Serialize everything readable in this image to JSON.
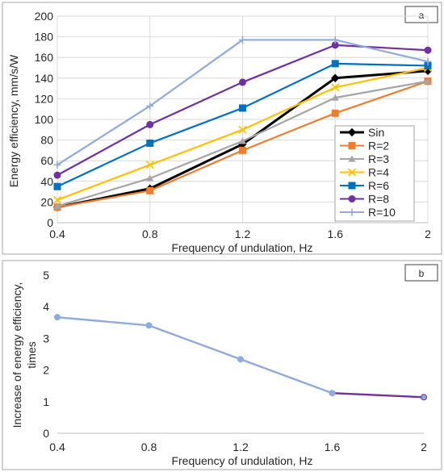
{
  "chart_data": [
    {
      "panel_label": "a",
      "type": "line",
      "xlabel": "Frequency of undulation, Hz",
      "ylabel": "Energy efficiency, mm/s/W",
      "x": [
        0.4,
        0.8,
        1.2,
        1.6,
        2
      ],
      "x_tick_labels": [
        "0.4",
        "0.8",
        "1.2",
        "1.6",
        "2"
      ],
      "xlim": [
        0.4,
        2
      ],
      "ylim": [
        0,
        200
      ],
      "y_ticks": [
        0,
        20,
        40,
        60,
        80,
        100,
        120,
        140,
        160,
        180,
        200
      ],
      "grid": true,
      "legend_position": "lower-right",
      "series": [
        {
          "name": "Sin",
          "values": [
            15,
            33,
            76,
            140,
            147
          ],
          "color": "#000000",
          "marker": "diamond"
        },
        {
          "name": "R=2",
          "values": [
            15,
            31,
            70,
            106,
            137
          ],
          "color": "#ed7d31",
          "marker": "square"
        },
        {
          "name": "R=3",
          "values": [
            16,
            43,
            79,
            121,
            137
          ],
          "color": "#a5a5a5",
          "marker": "triangle"
        },
        {
          "name": "R=4",
          "values": [
            22,
            56,
            90,
            131,
            150
          ],
          "color": "#ffc000",
          "marker": "x"
        },
        {
          "name": "R=6",
          "values": [
            35,
            77,
            111,
            154,
            152
          ],
          "color": "#0070c0",
          "marker": "square"
        },
        {
          "name": "R=8",
          "values": [
            46,
            95,
            136,
            172,
            167
          ],
          "color": "#7030a0",
          "marker": "circle"
        },
        {
          "name": "R=10",
          "values": [
            56,
            113,
            177,
            177,
            156
          ],
          "color": "#8faadc",
          "marker": "plus"
        }
      ]
    },
    {
      "panel_label": "b",
      "type": "line",
      "xlabel": "Frequency of undulation, Hz",
      "ylabel": "Increase of energy efficiency, times",
      "ylabel_lines": [
        "Increase of energy efficiency,",
        "times"
      ],
      "x": [
        0.4,
        0.8,
        1.2,
        1.6,
        2
      ],
      "x_tick_labels": [
        "0.4",
        "0.8",
        "1.2",
        "1.6",
        "2"
      ],
      "xlim": [
        0.4,
        2
      ],
      "ylim": [
        0,
        5
      ],
      "y_ticks": [
        0,
        1,
        2,
        3,
        4,
        5
      ],
      "grid": false,
      "series": [
        {
          "values": [
            3.67,
            3.41,
            2.34,
            1.27,
            1.14
          ],
          "color": "#8faadc",
          "last_segment_color": "#7030a0"
        }
      ]
    }
  ]
}
